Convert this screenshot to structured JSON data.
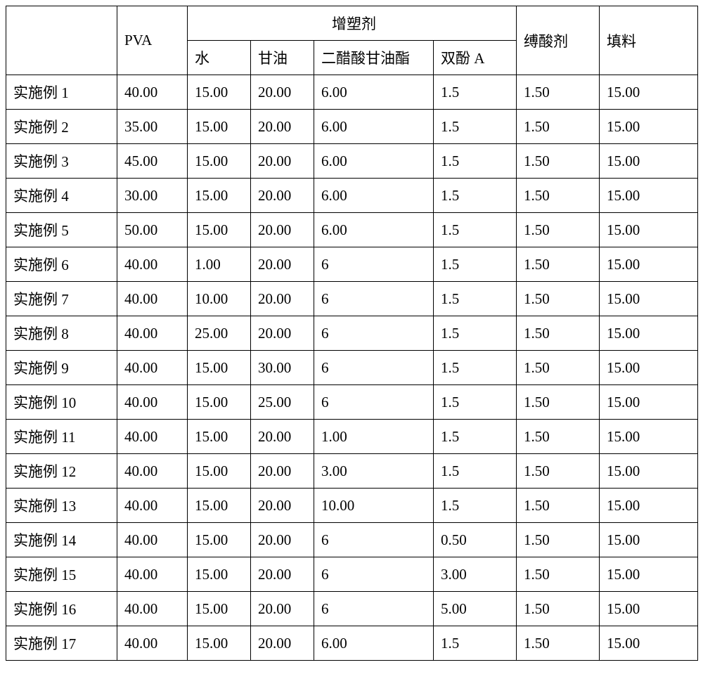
{
  "table": {
    "type": "table",
    "border_color": "#000000",
    "background_color": "#ffffff",
    "font_size_pt": 16,
    "headers": {
      "blank": "",
      "pva": "PVA",
      "plasticizer": "增塑剂",
      "water": "水",
      "glycerin": "甘油",
      "diacetin": "二醋酸甘油酯",
      "bisphenol_a": "双酚 A",
      "acid_binder": "缚酸剂",
      "filler": "填料"
    },
    "rows": [
      {
        "label": "实施例 1",
        "pva": "40.00",
        "water": "15.00",
        "glycerin": "20.00",
        "diacetin": "6.00",
        "bpa": "1.5",
        "acid": "1.50",
        "filler": "15.00"
      },
      {
        "label": "实施例 2",
        "pva": "35.00",
        "water": "15.00",
        "glycerin": "20.00",
        "diacetin": "6.00",
        "bpa": "1.5",
        "acid": "1.50",
        "filler": "15.00"
      },
      {
        "label": "实施例 3",
        "pva": "45.00",
        "water": "15.00",
        "glycerin": "20.00",
        "diacetin": "6.00",
        "bpa": "1.5",
        "acid": "1.50",
        "filler": "15.00"
      },
      {
        "label": "实施例 4",
        "pva": "30.00",
        "water": "15.00",
        "glycerin": "20.00",
        "diacetin": "6.00",
        "bpa": "1.5",
        "acid": "1.50",
        "filler": "15.00"
      },
      {
        "label": "实施例 5",
        "pva": "50.00",
        "water": "15.00",
        "glycerin": "20.00",
        "diacetin": "6.00",
        "bpa": "1.5",
        "acid": "1.50",
        "filler": "15.00"
      },
      {
        "label": "实施例 6",
        "pva": "40.00",
        "water": "1.00",
        "glycerin": "20.00",
        "diacetin": "6",
        "bpa": "1.5",
        "acid": "1.50",
        "filler": "15.00"
      },
      {
        "label": "实施例 7",
        "pva": "40.00",
        "water": "10.00",
        "glycerin": "20.00",
        "diacetin": "6",
        "bpa": "1.5",
        "acid": "1.50",
        "filler": "15.00"
      },
      {
        "label": "实施例 8",
        "pva": "40.00",
        "water": "25.00",
        "glycerin": "20.00",
        "diacetin": "6",
        "bpa": "1.5",
        "acid": "1.50",
        "filler": "15.00"
      },
      {
        "label": "实施例 9",
        "pva": "40.00",
        "water": "15.00",
        "glycerin": "30.00",
        "diacetin": "6",
        "bpa": "1.5",
        "acid": "1.50",
        "filler": "15.00"
      },
      {
        "label": "实施例 10",
        "pva": "40.00",
        "water": "15.00",
        "glycerin": "25.00",
        "diacetin": "6",
        "bpa": "1.5",
        "acid": "1.50",
        "filler": "15.00"
      },
      {
        "label": "实施例 11",
        "pva": "40.00",
        "water": "15.00",
        "glycerin": "20.00",
        "diacetin": "1.00",
        "bpa": "1.5",
        "acid": "1.50",
        "filler": "15.00"
      },
      {
        "label": "实施例 12",
        "pva": "40.00",
        "water": "15.00",
        "glycerin": "20.00",
        "diacetin": "3.00",
        "bpa": "1.5",
        "acid": "1.50",
        "filler": "15.00"
      },
      {
        "label": "实施例 13",
        "pva": "40.00",
        "water": "15.00",
        "glycerin": "20.00",
        "diacetin": "10.00",
        "bpa": "1.5",
        "acid": "1.50",
        "filler": "15.00"
      },
      {
        "label": "实施例 14",
        "pva": "40.00",
        "water": "15.00",
        "glycerin": "20.00",
        "diacetin": "6",
        "bpa": "0.50",
        "acid": "1.50",
        "filler": "15.00"
      },
      {
        "label": "实施例 15",
        "pva": "40.00",
        "water": "15.00",
        "glycerin": "20.00",
        "diacetin": "6",
        "bpa": "3.00",
        "acid": "1.50",
        "filler": "15.00"
      },
      {
        "label": "实施例 16",
        "pva": "40.00",
        "water": "15.00",
        "glycerin": "20.00",
        "diacetin": "6",
        "bpa": "5.00",
        "acid": "1.50",
        "filler": "15.00"
      },
      {
        "label": "实施例 17",
        "pva": "40.00",
        "water": "15.00",
        "glycerin": "20.00",
        "diacetin": "6.00",
        "bpa": "1.5",
        "acid": "1.50",
        "filler": "15.00"
      }
    ]
  }
}
